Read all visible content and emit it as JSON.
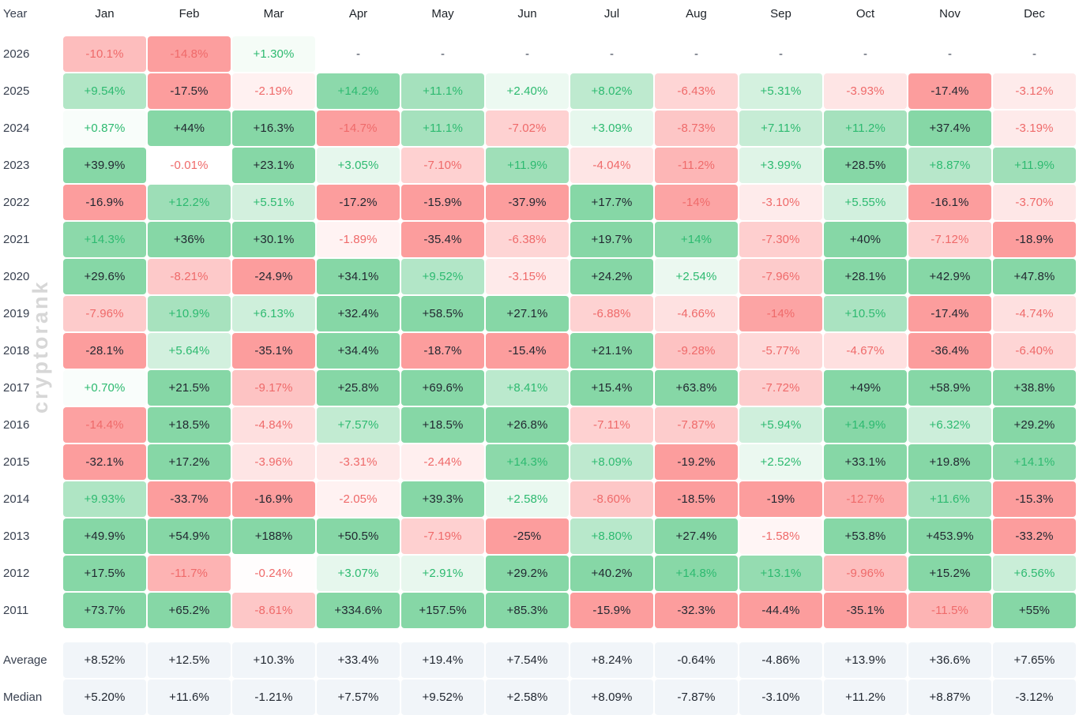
{
  "chart_data": {
    "type": "heatmap",
    "year_header": "Year",
    "watermark": "cryptorank",
    "months": [
      "Jan",
      "Feb",
      "Mar",
      "Apr",
      "May",
      "Jun",
      "Jul",
      "Aug",
      "Sep",
      "Oct",
      "Nov",
      "Dec"
    ],
    "rows": [
      {
        "year": "2026",
        "values": [
          "-10.1%",
          "-14.8%",
          "+1.30%",
          "-",
          "-",
          "-",
          "-",
          "-",
          "-",
          "-",
          "-",
          "-"
        ]
      },
      {
        "year": "2025",
        "values": [
          "+9.54%",
          "-17.5%",
          "-2.19%",
          "+14.2%",
          "+11.1%",
          "+2.40%",
          "+8.02%",
          "-6.43%",
          "+5.31%",
          "-3.93%",
          "-17.4%",
          "-3.12%"
        ]
      },
      {
        "year": "2024",
        "values": [
          "+0.87%",
          "+44%",
          "+16.3%",
          "-14.7%",
          "+11.1%",
          "-7.02%",
          "+3.09%",
          "-8.73%",
          "+7.11%",
          "+11.2%",
          "+37.4%",
          "-3.19%"
        ]
      },
      {
        "year": "2023",
        "values": [
          "+39.9%",
          "-0.01%",
          "+23.1%",
          "+3.05%",
          "-7.10%",
          "+11.9%",
          "-4.04%",
          "-11.2%",
          "+3.99%",
          "+28.5%",
          "+8.87%",
          "+11.9%"
        ]
      },
      {
        "year": "2022",
        "values": [
          "-16.9%",
          "+12.2%",
          "+5.51%",
          "-17.2%",
          "-15.9%",
          "-37.9%",
          "+17.7%",
          "-14%",
          "-3.10%",
          "+5.55%",
          "-16.1%",
          "-3.70%"
        ]
      },
      {
        "year": "2021",
        "values": [
          "+14.3%",
          "+36%",
          "+30.1%",
          "-1.89%",
          "-35.4%",
          "-6.38%",
          "+19.7%",
          "+14%",
          "-7.30%",
          "+40%",
          "-7.12%",
          "-18.9%"
        ]
      },
      {
        "year": "2020",
        "values": [
          "+29.6%",
          "-8.21%",
          "-24.9%",
          "+34.1%",
          "+9.52%",
          "-3.15%",
          "+24.2%",
          "+2.54%",
          "-7.96%",
          "+28.1%",
          "+42.9%",
          "+47.8%"
        ]
      },
      {
        "year": "2019",
        "values": [
          "-7.96%",
          "+10.9%",
          "+6.13%",
          "+32.4%",
          "+58.5%",
          "+27.1%",
          "-6.88%",
          "-4.66%",
          "-14%",
          "+10.5%",
          "-17.4%",
          "-4.74%"
        ]
      },
      {
        "year": "2018",
        "values": [
          "-28.1%",
          "+5.64%",
          "-35.1%",
          "+34.4%",
          "-18.7%",
          "-15.4%",
          "+21.1%",
          "-9.28%",
          "-5.77%",
          "-4.67%",
          "-36.4%",
          "-6.40%"
        ]
      },
      {
        "year": "2017",
        "values": [
          "+0.70%",
          "+21.5%",
          "-9.17%",
          "+25.8%",
          "+69.6%",
          "+8.41%",
          "+15.4%",
          "+63.8%",
          "-7.72%",
          "+49%",
          "+58.9%",
          "+38.8%"
        ]
      },
      {
        "year": "2016",
        "values": [
          "-14.4%",
          "+18.5%",
          "-4.84%",
          "+7.57%",
          "+18.5%",
          "+26.8%",
          "-7.11%",
          "-7.87%",
          "+5.94%",
          "+14.9%",
          "+6.32%",
          "+29.2%"
        ]
      },
      {
        "year": "2015",
        "values": [
          "-32.1%",
          "+17.2%",
          "-3.96%",
          "-3.31%",
          "-2.44%",
          "+14.3%",
          "+8.09%",
          "-19.2%",
          "+2.52%",
          "+33.1%",
          "+19.8%",
          "+14.1%"
        ]
      },
      {
        "year": "2014",
        "values": [
          "+9.93%",
          "-33.7%",
          "-16.9%",
          "-2.05%",
          "+39.3%",
          "+2.58%",
          "-8.60%",
          "-18.5%",
          "-19%",
          "-12.7%",
          "+11.6%",
          "-15.3%"
        ]
      },
      {
        "year": "2013",
        "values": [
          "+49.9%",
          "+54.9%",
          "+188%",
          "+50.5%",
          "-7.19%",
          "-25%",
          "+8.80%",
          "+27.4%",
          "-1.58%",
          "+53.8%",
          "+453.9%",
          "-33.2%"
        ]
      },
      {
        "year": "2012",
        "values": [
          "+17.5%",
          "-11.7%",
          "-0.24%",
          "+3.07%",
          "+2.91%",
          "+29.2%",
          "+40.2%",
          "+14.8%",
          "+13.1%",
          "-9.96%",
          "+15.2%",
          "+6.56%"
        ]
      },
      {
        "year": "2011",
        "values": [
          "+73.7%",
          "+65.2%",
          "-8.61%",
          "+334.6%",
          "+157.5%",
          "+85.3%",
          "-15.9%",
          "-32.3%",
          "-44.4%",
          "-35.1%",
          "-11.5%",
          "+55%"
        ]
      }
    ],
    "summary": [
      {
        "label": "Average",
        "values": [
          "+8.52%",
          "+12.5%",
          "+10.3%",
          "+33.4%",
          "+19.4%",
          "+7.54%",
          "+8.24%",
          "-0.64%",
          "-4.86%",
          "+13.9%",
          "+36.6%",
          "+7.65%"
        ]
      },
      {
        "label": "Median",
        "values": [
          "+5.20%",
          "+11.6%",
          "-1.21%",
          "+7.57%",
          "+9.52%",
          "+2.58%",
          "+8.09%",
          "-7.87%",
          "-3.10%",
          "+11.2%",
          "+8.87%",
          "-3.12%"
        ]
      }
    ],
    "colors": {
      "strong_green": "#86d7a6",
      "strong_red": "#fc9d9d",
      "green_text": "#2dba70",
      "red_text": "#ef6a6a",
      "dark_text": "#222831",
      "dash_text": "#394150",
      "summary_bg": "#f1f5f9",
      "year_text": "#394150",
      "header_text": "#1c2127",
      "watermark_color": "#d7d7d7"
    },
    "strong_threshold": 15,
    "scale_max": 15
  }
}
